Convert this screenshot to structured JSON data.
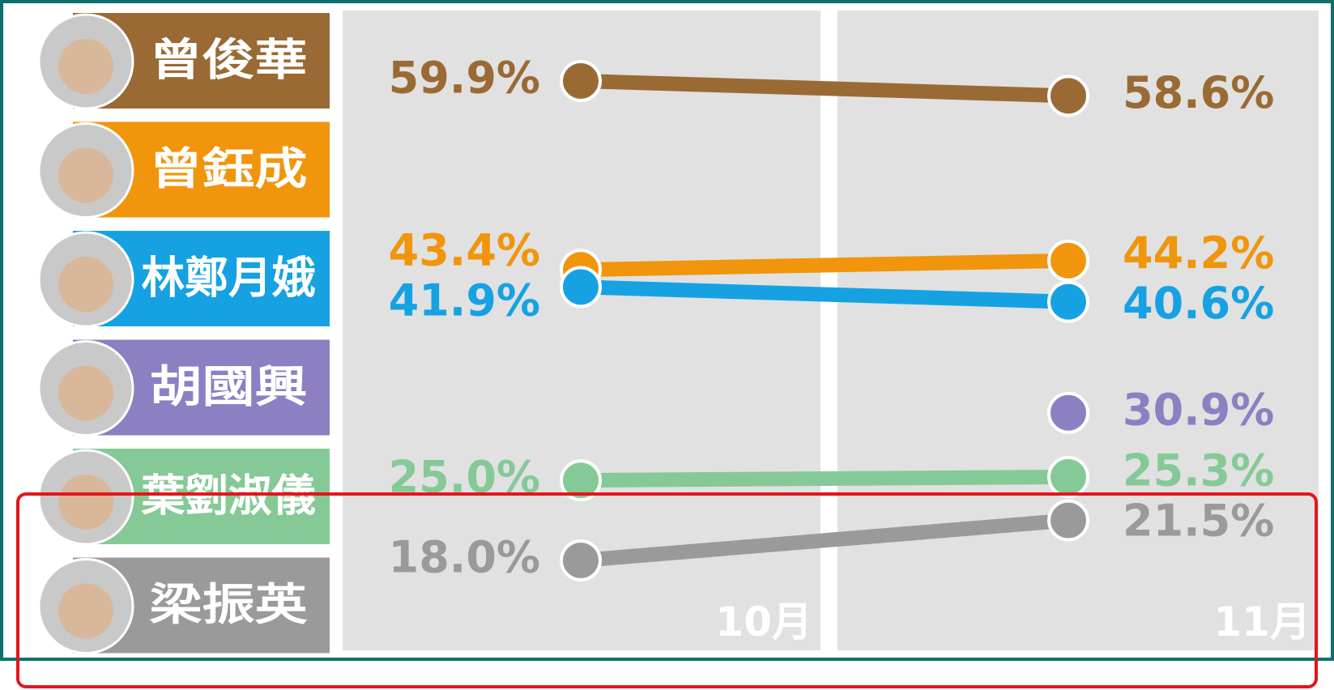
{
  "chart_data": {
    "type": "line",
    "categories": [
      "10月",
      "11月"
    ],
    "series": [
      {
        "name": "曾俊華",
        "color": "#9a6a34",
        "values": [
          59.9,
          58.6
        ],
        "value_labels": [
          "59.9%",
          "58.6%"
        ]
      },
      {
        "name": "曾鈺成",
        "color": "#f0950c",
        "values": [
          43.4,
          44.2
        ],
        "value_labels": [
          "43.4%",
          "44.2%"
        ]
      },
      {
        "name": "林鄭月娥",
        "color": "#16a2e2",
        "values": [
          41.9,
          40.6
        ],
        "value_labels": [
          "41.9%",
          "40.6%"
        ]
      },
      {
        "name": "胡國興",
        "color": "#8c7fc2",
        "values": [
          null,
          30.9
        ],
        "value_labels": [
          null,
          "30.9%"
        ]
      },
      {
        "name": "葉劉淑儀",
        "color": "#85c997",
        "values": [
          25.0,
          25.3
        ],
        "value_labels": [
          "25.0%",
          "25.3%"
        ]
      },
      {
        "name": "梁振英",
        "color": "#9a9a9a",
        "values": [
          18.0,
          21.5
        ],
        "value_labels": [
          "18.0%",
          "21.5%"
        ]
      }
    ]
  }
}
